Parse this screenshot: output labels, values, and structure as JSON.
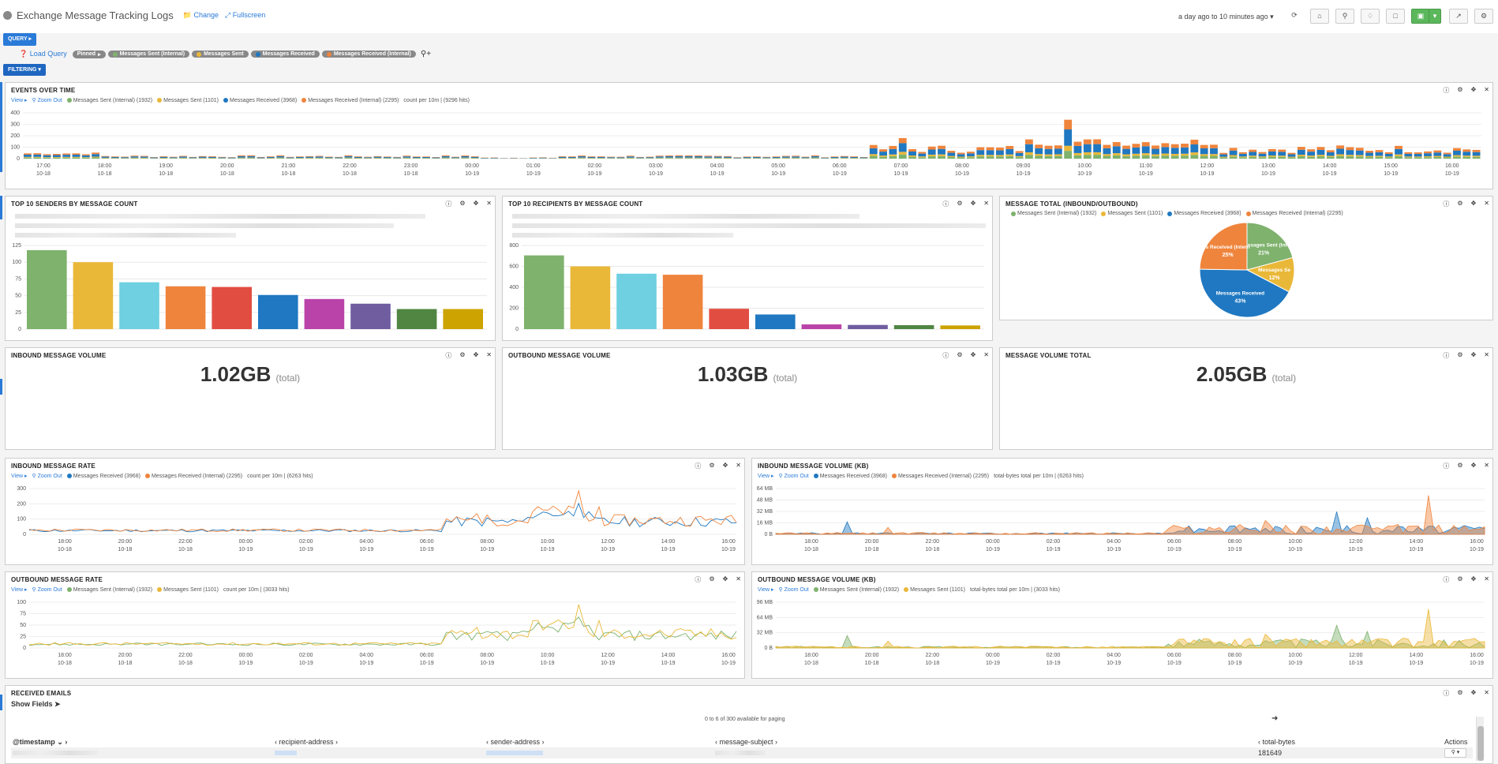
{
  "app": {
    "title": "Exchange Message Tracking Logs",
    "change_label": "Change",
    "fullscreen_label": "Fullscreen",
    "timerange": "a day ago to 10 minutes ago"
  },
  "toolbar": {
    "query_label": "QUERY",
    "filtering_label": "FILTERING",
    "load_query": "Load Query",
    "pinned": "Pinned",
    "queries": [
      {
        "label": "Messages Sent (Internal)",
        "color": "#7eb26d"
      },
      {
        "label": "Messages Sent",
        "color": "#eab839"
      },
      {
        "label": "Messages Received",
        "color": "#1f78c1"
      },
      {
        "label": "Messages Received (Internal)",
        "color": "#ef843c"
      }
    ]
  },
  "colors": {
    "sent_internal": "#7eb26d",
    "sent": "#eab839",
    "received": "#1f78c1",
    "received_internal": "#ef843c"
  },
  "events_over_time": {
    "title": "EVENTS OVER TIME",
    "view": "View",
    "zoom_out": "Zoom Out",
    "legend": [
      "Messages Sent (Internal) (1932)",
      "Messages Sent (1101)",
      "Messages Received (3968)",
      "Messages Received (Internal) (2295)"
    ],
    "count_text": "count per 10m | (9296 hits)",
    "ylabels": [
      "400",
      "300",
      "200",
      "100",
      "0"
    ],
    "xlabels": [
      "17:00",
      "18:00",
      "19:00",
      "20:00",
      "21:00",
      "22:00",
      "23:00",
      "00:00",
      "01:00",
      "02:00",
      "03:00",
      "04:00",
      "05:00",
      "06:00",
      "07:00",
      "08:00",
      "09:00",
      "10:00",
      "11:00",
      "12:00",
      "13:00",
      "14:00",
      "15:00",
      "16:00"
    ],
    "xdates": [
      "10-18",
      "10-18",
      "10-18",
      "10-18",
      "10-18",
      "10-18",
      "10-18",
      "10-19",
      "10-19",
      "10-19",
      "10-19",
      "10-19",
      "10-19",
      "10-19",
      "10-19",
      "10-19",
      "10-19",
      "10-19",
      "10-19",
      "10-19",
      "10-19",
      "10-19",
      "10-19",
      "10-19"
    ]
  },
  "top_senders": {
    "title": "TOP 10 SENDERS BY MESSAGE COUNT",
    "ylabels": [
      "125",
      "100",
      "75",
      "50",
      "25",
      "0"
    ],
    "ymax": 125,
    "values": [
      118,
      100,
      70,
      64,
      63,
      51,
      45,
      38,
      30,
      30
    ],
    "colors": [
      "#7eb26d",
      "#eab839",
      "#6ed0e0",
      "#ef843c",
      "#e24d42",
      "#1f78c1",
      "#ba43a9",
      "#705da0",
      "#508642",
      "#cca300"
    ]
  },
  "top_recipients": {
    "title": "TOP 10 RECIPIENTS BY MESSAGE COUNT",
    "ylabels": [
      "800",
      "600",
      "400",
      "200",
      "0"
    ],
    "ymax": 800,
    "values": [
      705,
      600,
      530,
      520,
      195,
      140,
      45,
      40,
      38,
      35
    ],
    "colors": [
      "#7eb26d",
      "#eab839",
      "#6ed0e0",
      "#ef843c",
      "#e24d42",
      "#1f78c1",
      "#ba43a9",
      "#705da0",
      "#508642",
      "#cca300"
    ]
  },
  "message_total": {
    "title": "MESSAGE TOTAL (INBOUND/OUTBOUND)",
    "legend": [
      "Messages Sent (Internal) (1932)",
      "Messages Sent (1101)",
      "Messages Received (3968)",
      "Messages Received (Internal) (2295)"
    ],
    "slices": [
      {
        "label": "Messages Sent (Int",
        "pct": "21%",
        "value": 21,
        "color": "#7eb26d"
      },
      {
        "label": "Messages Se",
        "pct": "12%",
        "value": 12,
        "color": "#eab839"
      },
      {
        "label": "Messages Received",
        "pct": "43%",
        "value": 43,
        "color": "#1f78c1"
      },
      {
        "label": "s Received (Intern",
        "pct": "25%",
        "value": 25,
        "color": "#ef843c"
      }
    ]
  },
  "inbound_volume": {
    "title": "INBOUND MESSAGE VOLUME",
    "value": "1.02GB",
    "sub": "(total)"
  },
  "outbound_volume": {
    "title": "OUTBOUND MESSAGE VOLUME",
    "value": "1.03GB",
    "sub": "(total)"
  },
  "volume_total": {
    "title": "MESSAGE VOLUME TOTAL",
    "value": "2.05GB",
    "sub": "(total)"
  },
  "inbound_rate": {
    "title": "INBOUND MESSAGE RATE",
    "legend": [
      "Messages Received (3968)",
      "Messages Received (Internal) (2295)"
    ],
    "count_text": "count per 10m | (6263 hits)",
    "ylabels": [
      "300",
      "200",
      "100",
      "0"
    ]
  },
  "inbound_volume_kb": {
    "title": "INBOUND MESSAGE VOLUME (KB)",
    "legend": [
      "Messages Received (3968)",
      "Messages Received (Internal) (2295)"
    ],
    "count_text": "total-bytes total per 10m | (6263 hits)",
    "ylabels": [
      "64 MB",
      "48 MB",
      "32 MB",
      "16 MB",
      "0 B"
    ]
  },
  "outbound_rate": {
    "title": "OUTBOUND MESSAGE RATE",
    "legend": [
      "Messages Sent (Internal) (1932)",
      "Messages Sent (1101)"
    ],
    "count_text": "count per 10m | (3033 hits)",
    "ylabels": [
      "100",
      "75",
      "50",
      "25",
      "0"
    ]
  },
  "outbound_volume_kb": {
    "title": "OUTBOUND MESSAGE VOLUME (KB)",
    "legend": [
      "Messages Sent (Internal) (1932)",
      "Messages Sent (1101)"
    ],
    "count_text": "total-bytes total per 10m | (3033 hits)",
    "ylabels": [
      "96 MB",
      "64 MB",
      "32 MB",
      "0 B"
    ]
  },
  "small_xlabels": [
    "18:00",
    "20:00",
    "22:00",
    "00:00",
    "02:00",
    "04:00",
    "06:00",
    "08:00",
    "10:00",
    "12:00",
    "14:00",
    "16:00"
  ],
  "small_xdates": [
    "10-18",
    "10-18",
    "10-18",
    "10-19",
    "10-19",
    "10-19",
    "10-19",
    "10-19",
    "10-19",
    "10-19",
    "10-19",
    "10-19"
  ],
  "received_emails": {
    "title": "RECEIVED EMAILS",
    "show_fields": "Show Fields",
    "paging": "0 to 6 of 300 available for paging",
    "columns": [
      "@timestamp",
      "recipient-address",
      "sender-address",
      "message-subject",
      "total-bytes",
      "Actions"
    ],
    "row_total_bytes": "181649"
  }
}
